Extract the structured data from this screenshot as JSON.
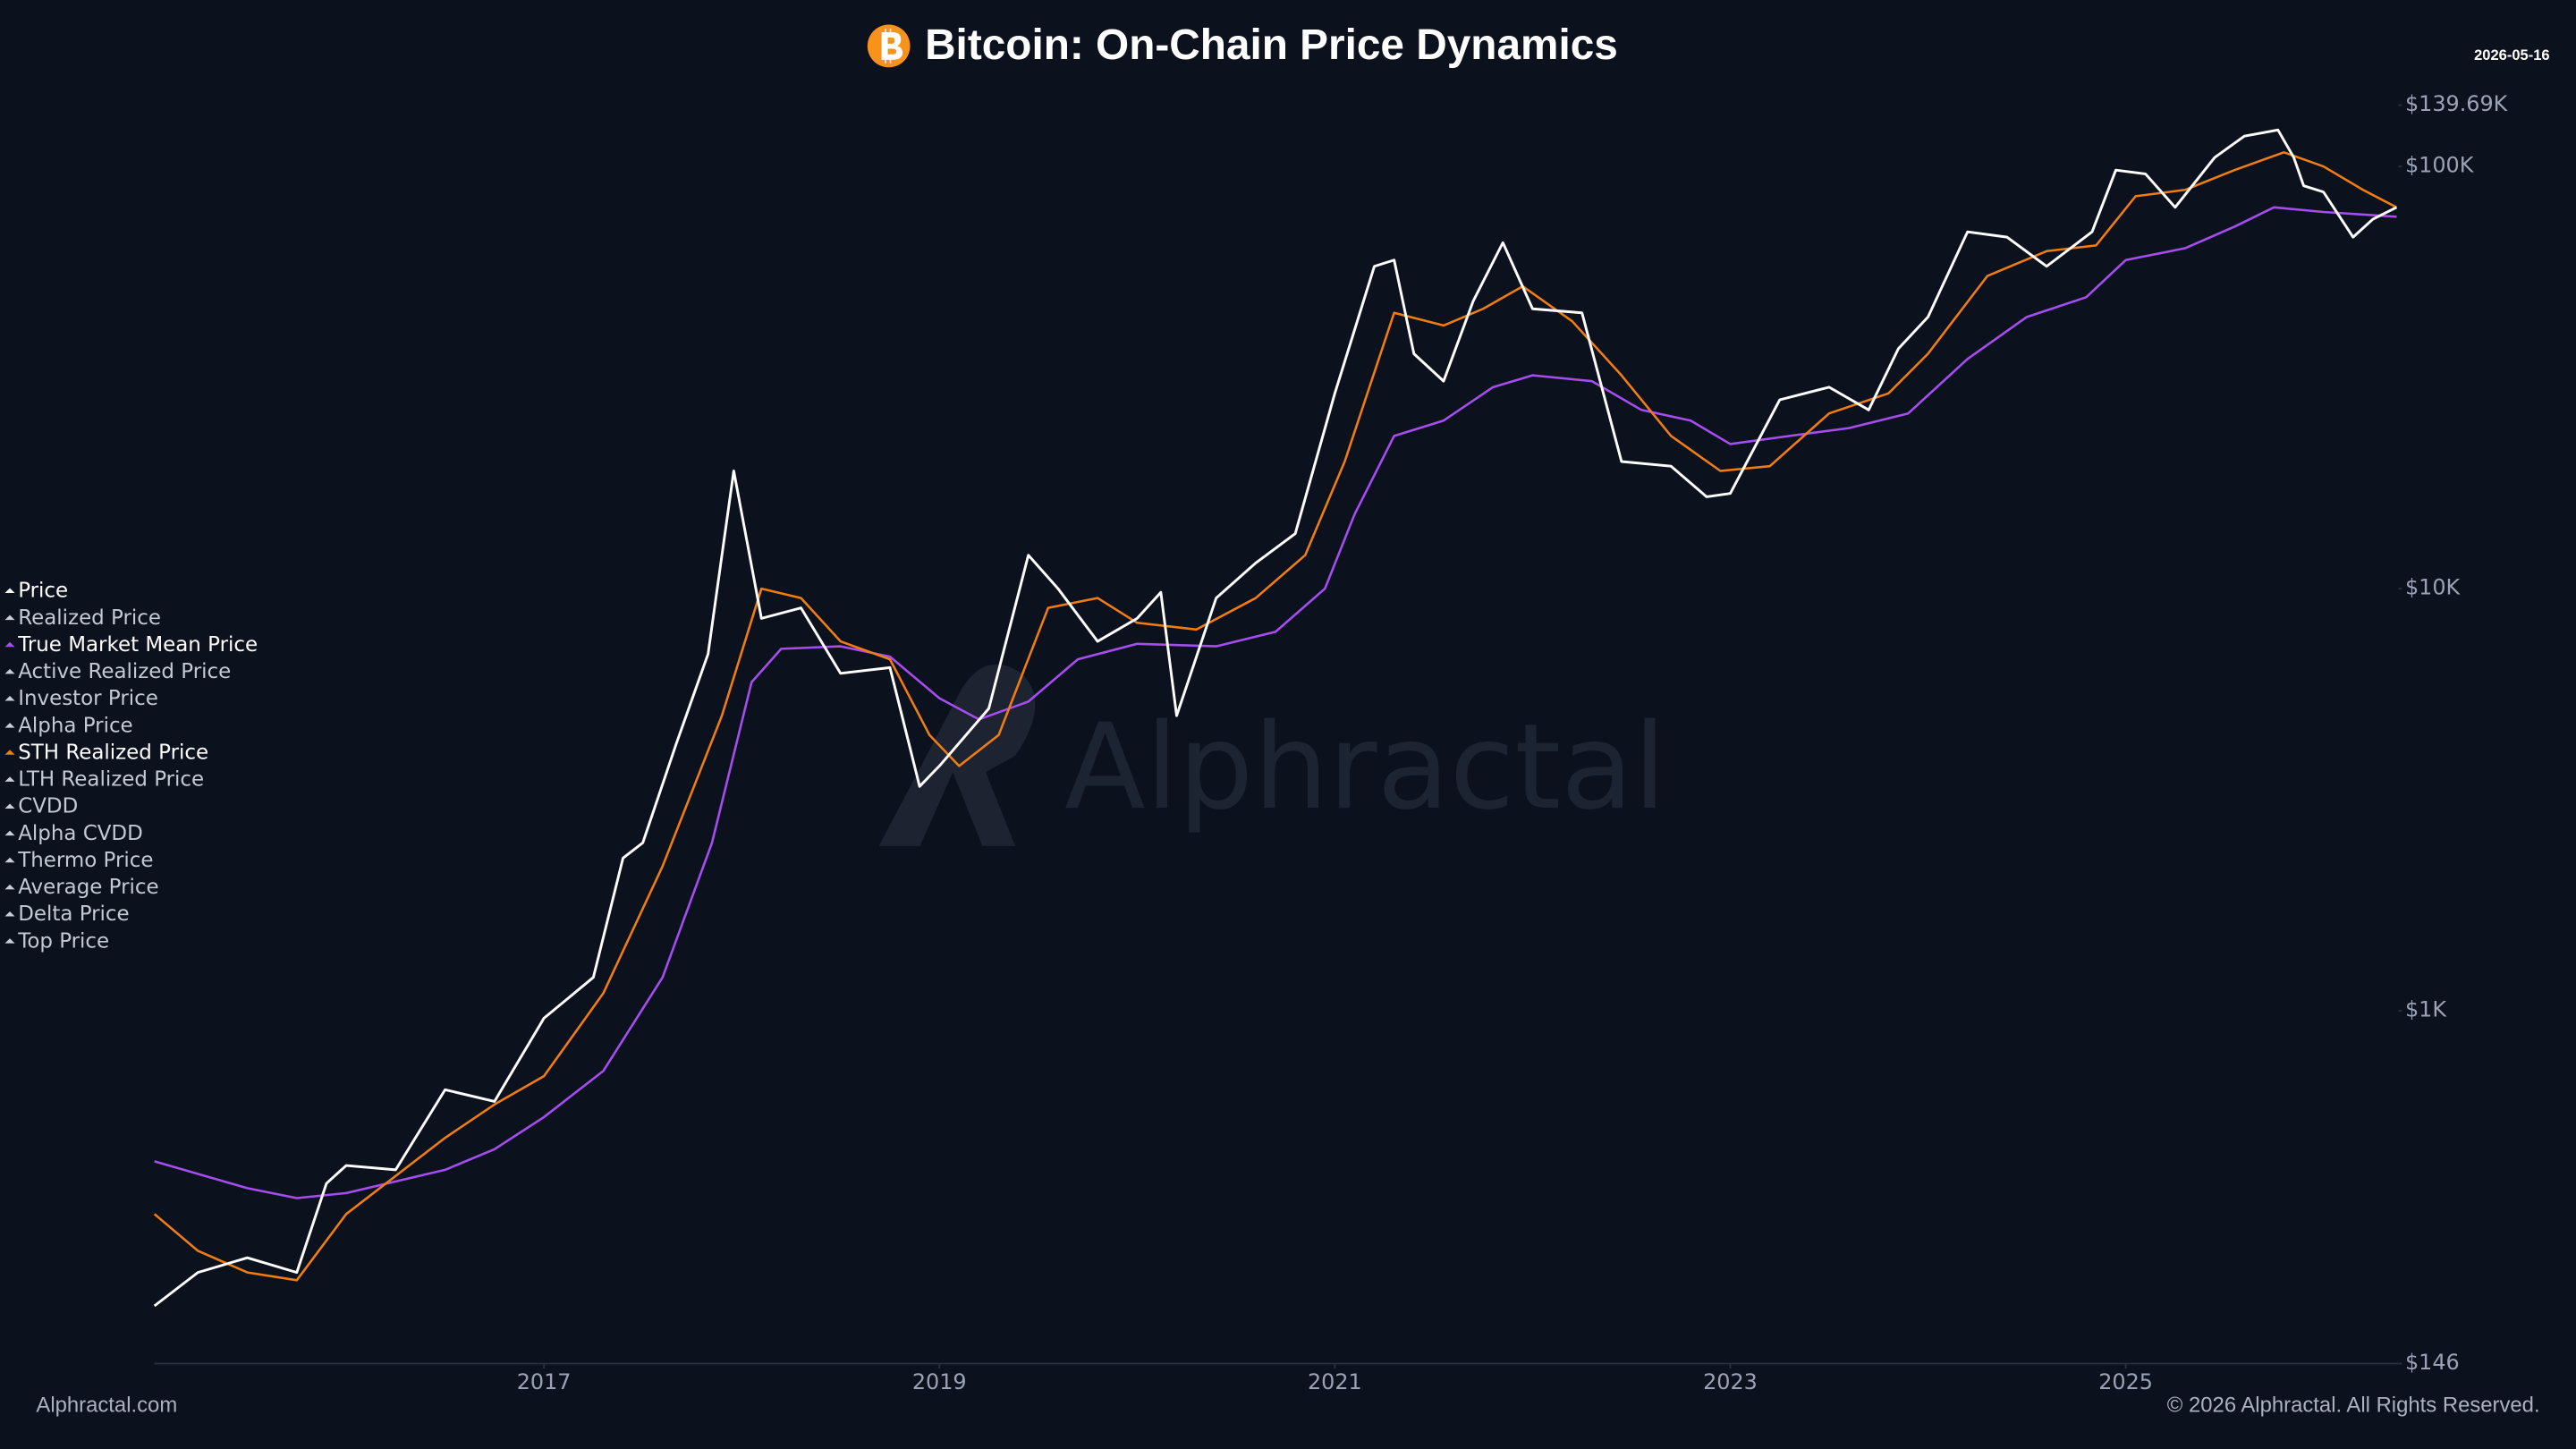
{
  "chart_data": {
    "type": "line",
    "title": "Bitcoin: On-Chain Price Dynamics",
    "date": "2026-05-16",
    "watermark": "Alphractal",
    "footer_left": "Alphractal.com",
    "footer_right": "© 2026 Alphractal. All Rights Reserved.",
    "log_scale": true,
    "legend_position": "left",
    "xlim": [
      2015.03,
      2026.38
    ],
    "xticks": [
      2017,
      2019,
      2021,
      2023,
      2025
    ],
    "ylim": [
      146,
      139690
    ],
    "yticks": [
      {
        "value": 146,
        "label": "$146"
      },
      {
        "value": 1000,
        "label": "$1K"
      },
      {
        "value": 10000,
        "label": "$10K"
      },
      {
        "value": 100000,
        "label": "$100K"
      },
      {
        "value": 139690,
        "label": "$139.69K"
      }
    ],
    "series": [
      {
        "name": "Price",
        "color": "#ffffff",
        "visible": true,
        "x": [
          2015.03,
          2015.25,
          2015.5,
          2015.75,
          2015.9,
          2016.0,
          2016.25,
          2016.5,
          2016.75,
          2017.0,
          2017.25,
          2017.4,
          2017.5,
          2017.67,
          2017.83,
          2017.96,
          2018.1,
          2018.3,
          2018.5,
          2018.75,
          2018.9,
          2019.0,
          2019.25,
          2019.45,
          2019.6,
          2019.8,
          2020.0,
          2020.12,
          2020.2,
          2020.4,
          2020.6,
          2020.8,
          2021.0,
          2021.2,
          2021.3,
          2021.4,
          2021.55,
          2021.7,
          2021.85,
          2022.0,
          2022.25,
          2022.45,
          2022.7,
          2022.88,
          2023.0,
          2023.25,
          2023.5,
          2023.7,
          2023.85,
          2024.0,
          2024.2,
          2024.4,
          2024.6,
          2024.83,
          2024.95,
          2025.1,
          2025.25,
          2025.45,
          2025.6,
          2025.77,
          2025.85,
          2025.9,
          2026.0,
          2026.15,
          2026.25,
          2026.37
        ],
        "values": [
          200,
          240,
          260,
          240,
          390,
          430,
          420,
          650,
          610,
          960,
          1200,
          2300,
          2500,
          4300,
          7000,
          19000,
          8500,
          9000,
          6300,
          6500,
          3400,
          3800,
          5200,
          12000,
          10000,
          7500,
          8500,
          9800,
          5000,
          9500,
          11500,
          13500,
          29000,
          58000,
          60000,
          36000,
          31000,
          48000,
          66000,
          46000,
          45000,
          20000,
          19500,
          16500,
          16800,
          28000,
          30000,
          26500,
          37000,
          44000,
          70000,
          68000,
          58000,
          70000,
          98000,
          96000,
          80000,
          105000,
          118000,
          122000,
          105000,
          90000,
          87000,
          68000,
          75000,
          80000
        ]
      },
      {
        "name": "Realized Price",
        "visible": false
      },
      {
        "name": "True Market Mean Price",
        "color": "#a64df0",
        "visible": true,
        "x": [
          2015.03,
          2015.5,
          2015.75,
          2016.0,
          2016.5,
          2016.75,
          2017.0,
          2017.3,
          2017.6,
          2017.85,
          2018.05,
          2018.2,
          2018.5,
          2018.75,
          2019.0,
          2019.2,
          2019.45,
          2019.7,
          2020.0,
          2020.4,
          2020.7,
          2020.95,
          2021.1,
          2021.3,
          2021.55,
          2021.8,
          2022.0,
          2022.3,
          2022.55,
          2022.8,
          2023.0,
          2023.3,
          2023.6,
          2023.9,
          2024.2,
          2024.5,
          2024.8,
          2025.0,
          2025.3,
          2025.55,
          2025.75,
          2026.0,
          2026.37
        ],
        "values": [
          440,
          380,
          360,
          370,
          420,
          470,
          560,
          720,
          1200,
          2500,
          6000,
          7200,
          7300,
          6900,
          5500,
          4900,
          5400,
          6800,
          7400,
          7300,
          7900,
          10000,
          15000,
          23000,
          25000,
          30000,
          32000,
          31000,
          26500,
          25000,
          22000,
          23000,
          24000,
          26000,
          35000,
          44000,
          49000,
          60000,
          64000,
          72000,
          80000,
          78000,
          76000
        ]
      },
      {
        "name": "Active Realized Price",
        "visible": false
      },
      {
        "name": "Investor Price",
        "visible": false
      },
      {
        "name": "Alpha Price",
        "visible": false
      },
      {
        "name": "STH Realized Price",
        "color": "#f07d12",
        "visible": true,
        "x": [
          2015.03,
          2015.25,
          2015.5,
          2015.75,
          2016.0,
          2016.5,
          2016.75,
          2017.0,
          2017.3,
          2017.6,
          2017.9,
          2018.1,
          2018.3,
          2018.5,
          2018.75,
          2018.95,
          2019.1,
          2019.3,
          2019.55,
          2019.8,
          2020.0,
          2020.3,
          2020.6,
          2020.85,
          2021.05,
          2021.3,
          2021.55,
          2021.75,
          2021.95,
          2022.2,
          2022.45,
          2022.7,
          2022.95,
          2023.2,
          2023.5,
          2023.8,
          2024.0,
          2024.3,
          2024.6,
          2024.85,
          2025.05,
          2025.3,
          2025.55,
          2025.8,
          2026.0,
          2026.2,
          2026.37
        ],
        "values": [
          330,
          270,
          240,
          230,
          330,
          500,
          600,
          700,
          1100,
          2200,
          5000,
          10000,
          9500,
          7500,
          6800,
          4500,
          3800,
          4500,
          9000,
          9500,
          8300,
          8000,
          9500,
          12000,
          20000,
          45000,
          42000,
          46000,
          52000,
          43000,
          32000,
          23000,
          19000,
          19500,
          26000,
          29000,
          36000,
          55000,
          63000,
          65000,
          85000,
          88000,
          98000,
          108000,
          100000,
          88000,
          80000
        ]
      },
      {
        "name": "LTH Realized Price",
        "visible": false
      },
      {
        "name": "CVDD",
        "visible": false
      },
      {
        "name": "Alpha CVDD",
        "visible": false
      },
      {
        "name": "Thermo Price",
        "visible": false
      },
      {
        "name": "Average Price",
        "visible": false
      },
      {
        "name": "Delta Price",
        "visible": false
      },
      {
        "name": "Top Price",
        "visible": false
      }
    ]
  }
}
